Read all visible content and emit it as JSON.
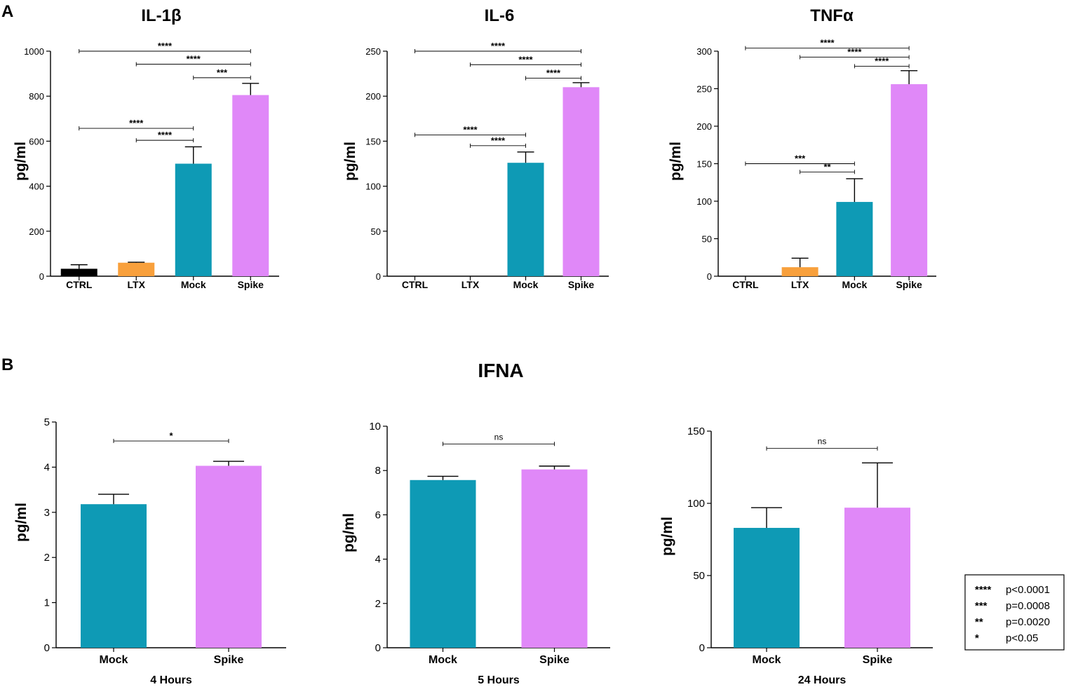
{
  "panel_labels": {
    "a": "A",
    "b": "B"
  },
  "section_b_title": "IFNA",
  "colors": {
    "CTRL": "#000000",
    "LTX": "#F8A03C",
    "Mock": "#0E9AB5",
    "Spike": "#E088F8"
  },
  "chart_data": [
    {
      "type": "bar",
      "panel": "A",
      "title": "IL-1β",
      "ylabel": "pg/ml",
      "xlabel": "",
      "categories": [
        "CTRL",
        "LTX",
        "Mock",
        "Spike"
      ],
      "values": [
        33,
        60,
        500,
        805
      ],
      "errors": [
        18,
        2,
        75,
        52
      ],
      "ylim": [
        0,
        1000
      ],
      "yticks": [
        0,
        200,
        400,
        600,
        800,
        1000
      ],
      "comparisons": [
        {
          "from": 0,
          "to": 3,
          "label": "****",
          "y": 1000
        },
        {
          "from": 1,
          "to": 3,
          "label": "****",
          "y": 942
        },
        {
          "from": 2,
          "to": 3,
          "label": "***",
          "y": 882
        },
        {
          "from": 0,
          "to": 2,
          "label": "****",
          "y": 657
        },
        {
          "from": 1,
          "to": 2,
          "label": "****",
          "y": 604
        }
      ]
    },
    {
      "type": "bar",
      "panel": "A",
      "title": "IL-6",
      "ylabel": "pg/ml",
      "xlabel": "",
      "categories": [
        "CTRL",
        "LTX",
        "Mock",
        "Spike"
      ],
      "values": [
        0,
        0,
        126,
        210
      ],
      "errors": [
        0,
        0,
        12,
        5
      ],
      "ylim": [
        0,
        250
      ],
      "yticks": [
        0,
        50,
        100,
        150,
        200,
        250
      ],
      "comparisons": [
        {
          "from": 0,
          "to": 3,
          "label": "****",
          "y": 250
        },
        {
          "from": 1,
          "to": 3,
          "label": "****",
          "y": 235
        },
        {
          "from": 2,
          "to": 3,
          "label": "****",
          "y": 220
        },
        {
          "from": 0,
          "to": 2,
          "label": "****",
          "y": 157
        },
        {
          "from": 1,
          "to": 2,
          "label": "****",
          "y": 145
        }
      ]
    },
    {
      "type": "bar",
      "panel": "A",
      "title": "TNFα",
      "ylabel": "pg/ml",
      "xlabel": "",
      "categories": [
        "CTRL",
        "LTX",
        "Mock",
        "Spike"
      ],
      "values": [
        0,
        12,
        99,
        256
      ],
      "errors": [
        0,
        12,
        31,
        18
      ],
      "ylim": [
        0,
        300
      ],
      "yticks": [
        0,
        50,
        100,
        150,
        200,
        250,
        300
      ],
      "comparisons": [
        {
          "from": 0,
          "to": 3,
          "label": "****",
          "y": 304
        },
        {
          "from": 1,
          "to": 3,
          "label": "****",
          "y": 292
        },
        {
          "from": 2,
          "to": 3,
          "label": "****",
          "y": 280
        },
        {
          "from": 0,
          "to": 2,
          "label": "***",
          "y": 150
        },
        {
          "from": 1,
          "to": 2,
          "label": "**",
          "y": 139
        }
      ]
    },
    {
      "type": "bar",
      "panel": "B",
      "title": "",
      "ylabel": "pg/ml",
      "xlabel": "4 Hours",
      "categories": [
        "Mock",
        "Spike"
      ],
      "values": [
        3.18,
        4.03
      ],
      "errors": [
        0.22,
        0.1
      ],
      "ylim": [
        0,
        5
      ],
      "yticks": [
        0,
        1,
        2,
        3,
        4,
        5
      ],
      "comparisons": [
        {
          "from": 0,
          "to": 1,
          "label": "*",
          "y": 4.58
        }
      ]
    },
    {
      "type": "bar",
      "panel": "B",
      "title": "",
      "ylabel": "pg/ml",
      "xlabel": "5 Hours",
      "categories": [
        "Mock",
        "Spike"
      ],
      "values": [
        7.57,
        8.05
      ],
      "errors": [
        0.17,
        0.15
      ],
      "ylim": [
        0,
        10
      ],
      "yticks": [
        0,
        2,
        4,
        6,
        8,
        10
      ],
      "comparisons": [
        {
          "from": 0,
          "to": 1,
          "label": "ns",
          "y": 9.2
        }
      ]
    },
    {
      "type": "bar",
      "panel": "B",
      "title": "",
      "ylabel": "pg/ml",
      "xlabel": "24 Hours",
      "categories": [
        "Mock",
        "Spike"
      ],
      "values": [
        83,
        97
      ],
      "errors": [
        14,
        31
      ],
      "ylim": [
        0,
        150
      ],
      "yticks": [
        0,
        50,
        100,
        150
      ],
      "comparisons": [
        {
          "from": 0,
          "to": 1,
          "label": "ns",
          "y": 138
        }
      ]
    }
  ],
  "legend": [
    {
      "symbol": "****",
      "text": "p<0.0001"
    },
    {
      "symbol": "***",
      "text": "p=0.0008"
    },
    {
      "symbol": "**",
      "text": "p=0.0020"
    },
    {
      "symbol": "*",
      "text": "p<0.05"
    }
  ]
}
